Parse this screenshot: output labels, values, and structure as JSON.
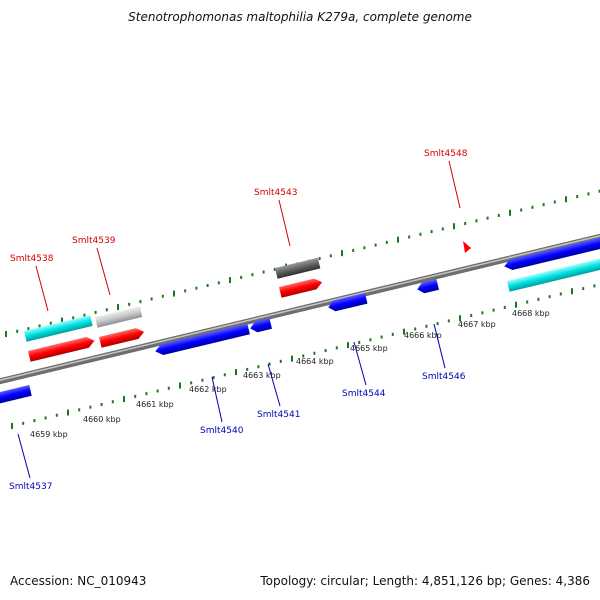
{
  "title": "Stenotrophomonas maltophilia K279a, complete genome",
  "footer": {
    "accession": "Accession: NC_010943",
    "summary": "Topology: circular; Length: 4,851,126 bp; Genes: 4,386"
  },
  "colors": {
    "forward_label": "#d40000",
    "reverse_label": "#0000b4",
    "tick": "#1a7a1a",
    "backbone": "#8c8c8c",
    "cds_forward": "#ff0000",
    "cds_reverse": "#0000ff",
    "rna_cyan": "#00e0e0",
    "gray_light": "#c8c8c8",
    "gray_dark": "#606060"
  },
  "ticks": [
    {
      "label": "4659 kbp"
    },
    {
      "label": "4660 kbp"
    },
    {
      "label": "4661 kbp"
    },
    {
      "label": "4662 kbp"
    },
    {
      "label": "4663 kbp"
    },
    {
      "label": "4664 kbp"
    },
    {
      "label": "4665 kbp"
    },
    {
      "label": "4666 kbp"
    },
    {
      "label": "4667 kbp"
    },
    {
      "label": "4668 kbp"
    }
  ],
  "forward_genes": [
    {
      "label": "Smlt4538"
    },
    {
      "label": "Smlt4539"
    },
    {
      "label": "Smlt4543"
    },
    {
      "label": "Smlt4548"
    }
  ],
  "reverse_genes": [
    {
      "label": "Smlt4537"
    },
    {
      "label": "Smlt4540"
    },
    {
      "label": "Smlt4541"
    },
    {
      "label": "Smlt4544"
    },
    {
      "label": "Smlt4546"
    }
  ]
}
